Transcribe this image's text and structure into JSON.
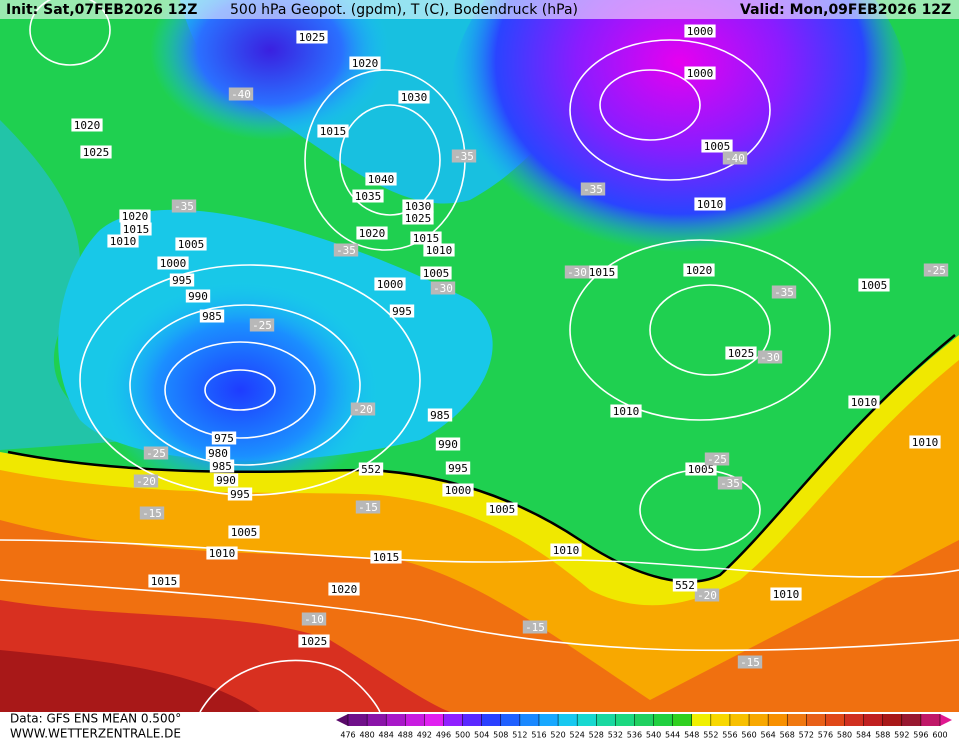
{
  "header": {
    "init": "Init: Sat,07FEB2026 12Z",
    "title": "500 hPa Geopot. (gpdm), T (C), Bodendruck (hPa)",
    "valid": "Valid: Mon,09FEB2026 12Z"
  },
  "footer": {
    "source": "Data: GFS ENS MEAN 0.500°",
    "website": "WWW.WETTERZENTRALE.DE"
  },
  "pressure_labels": [
    "1025",
    "1020",
    "1030",
    "1015",
    "1040",
    "1035",
    "1030",
    "1025",
    "1020",
    "1015",
    "1010",
    "1005",
    "1000",
    "995",
    "985",
    "990",
    "995",
    "1000",
    "1005",
    "1010",
    "1015",
    "1020",
    "1025",
    "1015",
    "1010",
    "1005",
    "995",
    "990",
    "985",
    "980",
    "975",
    "985",
    "990",
    "995",
    "1000",
    "1005",
    "1010",
    "1015",
    "1020",
    "1025",
    "1020",
    "1000",
    "1000",
    "1005",
    "1010",
    "1015",
    "1020",
    "1025",
    "1005",
    "1010",
    "1010",
    "1010",
    "1005",
    "1010"
  ],
  "temperature_labels": [
    "-40",
    "-35",
    "-35",
    "-35",
    "-30",
    "-30",
    "-35",
    "-40",
    "-35",
    "-30",
    "-25",
    "-25",
    "-20",
    "-25",
    "-20",
    "-15",
    "-15",
    "-10",
    "-15",
    "-20",
    "-15",
    "-25",
    "-35"
  ],
  "geopotential_labels": [
    "552",
    "552"
  ],
  "color_scale": {
    "levels": [
      476,
      480,
      484,
      488,
      492,
      496,
      500,
      504,
      508,
      512,
      516,
      520,
      524,
      528,
      532,
      536,
      540,
      544,
      548,
      552,
      556,
      560,
      564,
      568,
      572,
      576,
      580,
      584,
      588,
      592,
      596,
      600
    ],
    "colors": [
      "#5a0a6a",
      "#70108a",
      "#8a14a8",
      "#a818c8",
      "#c81ce0",
      "#e020f0",
      "#9020ff",
      "#5a28ff",
      "#2a40ff",
      "#2060ff",
      "#1a88ff",
      "#18a8ff",
      "#18c8f0",
      "#18d8d0",
      "#1ad8a0",
      "#1cd880",
      "#20d060",
      "#20d040",
      "#30d020",
      "#f0f000",
      "#f8d800",
      "#f8c000",
      "#f8a800",
      "#f89000",
      "#f07810",
      "#e86018",
      "#e04818",
      "#d03020",
      "#c02020",
      "#a81818",
      "#981830",
      "#c01868",
      "#e01890"
    ]
  }
}
